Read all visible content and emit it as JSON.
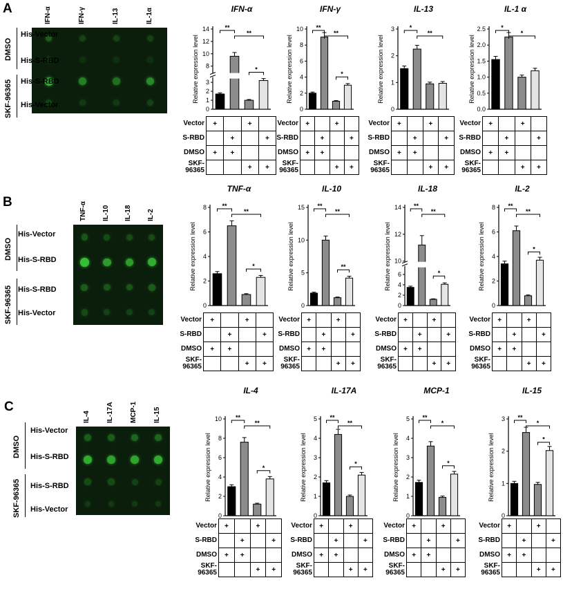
{
  "figure": {
    "panels": [
      {
        "letter": "A",
        "blot": {
          "columns": [
            "IFN-α",
            "IFN-γ",
            "IL-13",
            "IL-1α"
          ],
          "rows": [
            "His-Vector",
            "His-S-RBD",
            "His-S-RBD",
            "His-Vector"
          ],
          "groups": [
            "DMSO",
            "SKF-96365"
          ]
        }
      },
      {
        "letter": "B",
        "blot": {
          "columns": [
            "TNF-α",
            "IL-10",
            "IL-18",
            "IL-2"
          ],
          "rows": [
            "His-Vector",
            "His-S-RBD",
            "His-S-RBD",
            "His-Vector"
          ],
          "groups": [
            "DMSO",
            "SKF-96365"
          ]
        }
      },
      {
        "letter": "C",
        "blot": {
          "columns": [
            "IL-4",
            "IL-17A",
            "MCP-1",
            "IL-15"
          ],
          "rows": [
            "His-Vector",
            "His-S-RBD",
            "His-S-RBD",
            "His-Vector"
          ],
          "groups": [
            "DMSO",
            "SKF-96365"
          ]
        }
      }
    ],
    "condition_table": {
      "rows": [
        {
          "label": "Vector",
          "marks": [
            "+",
            "",
            "+",
            ""
          ]
        },
        {
          "label": "S-RBD",
          "marks": [
            "",
            "+",
            "",
            "+"
          ]
        },
        {
          "label": "DMSO",
          "marks": [
            "+",
            "+",
            "",
            ""
          ]
        },
        {
          "label": "SKF-96365",
          "marks": [
            "",
            "",
            "+",
            "+"
          ]
        }
      ]
    },
    "colors": {
      "bar1": "#000000",
      "bar2": "#8c8c8c",
      "bar3": "#8c8c8c",
      "bar4": "#e4e4e4",
      "blot_bg": "#0b1e0b",
      "blot_spot": "#3ad13a"
    }
  },
  "chart_data": [
    {
      "type": "bar",
      "title": "IFN-α",
      "ylabel": "Relative expression level",
      "values": [
        1.7,
        9.6,
        1.0,
        3.2
      ],
      "ylim": [
        0,
        14
      ],
      "break": [
        3.5,
        7
      ],
      "ticks": [
        0,
        1,
        2,
        3,
        8,
        10,
        12,
        14
      ],
      "sig": [
        {
          "from": 0,
          "to": 1,
          "label": "**"
        },
        {
          "from": 1,
          "to": 3,
          "label": "**"
        },
        {
          "from": 2,
          "to": 3,
          "label": "*"
        }
      ]
    },
    {
      "type": "bar",
      "title": "IFN-γ",
      "ylabel": "Relative expression level",
      "values": [
        2.0,
        9.0,
        1.0,
        3.0
      ],
      "ylim": [
        0,
        10
      ],
      "ticks": [
        0,
        2,
        4,
        6,
        8,
        10
      ],
      "sig": [
        {
          "from": 0,
          "to": 1,
          "label": "**"
        },
        {
          "from": 1,
          "to": 3,
          "label": "**"
        },
        {
          "from": 2,
          "to": 3,
          "label": "*"
        }
      ]
    },
    {
      "type": "bar",
      "title": "IL-13",
      "ylabel": "Relative expression level",
      "values": [
        1.52,
        2.25,
        0.95,
        0.97
      ],
      "ylim": [
        0,
        3
      ],
      "ticks": [
        0,
        1,
        2,
        3
      ],
      "sig": [
        {
          "from": 0,
          "to": 1,
          "label": "*"
        },
        {
          "from": 1,
          "to": 3,
          "label": "**"
        }
      ]
    },
    {
      "type": "bar",
      "title": "IL-1 α",
      "ylabel": "Relative expression level",
      "values": [
        1.55,
        2.25,
        1.0,
        1.2
      ],
      "ylim": [
        0,
        2.5
      ],
      "ticks": [
        0.0,
        0.5,
        1.0,
        1.5,
        2.0,
        2.5
      ],
      "sig": [
        {
          "from": 0,
          "to": 1,
          "label": "*"
        },
        {
          "from": 1,
          "to": 3,
          "label": "*"
        }
      ]
    },
    {
      "type": "bar",
      "title": "TNF-α",
      "ylabel": "Relative expression level",
      "values": [
        2.6,
        6.5,
        0.9,
        2.3
      ],
      "ylim": [
        0,
        8
      ],
      "ticks": [
        0,
        2,
        4,
        6,
        8
      ],
      "sig": [
        {
          "from": 0,
          "to": 1,
          "label": "**"
        },
        {
          "from": 1,
          "to": 3,
          "label": "**"
        },
        {
          "from": 2,
          "to": 3,
          "label": "*"
        }
      ]
    },
    {
      "type": "bar",
      "title": "IL-10",
      "ylabel": "Relative expression level",
      "values": [
        1.9,
        10.0,
        1.2,
        4.2
      ],
      "ylim": [
        0,
        15
      ],
      "ticks": [
        0,
        5,
        10,
        15
      ],
      "sig": [
        {
          "from": 0,
          "to": 1,
          "label": "**"
        },
        {
          "from": 1,
          "to": 3,
          "label": "**"
        },
        {
          "from": 2,
          "to": 3,
          "label": "**"
        }
      ]
    },
    {
      "type": "bar",
      "title": "IL-18",
      "ylabel": "Relative expression level",
      "values": [
        3.5,
        11.2,
        1.2,
        4.1
      ],
      "ylim": [
        0,
        14
      ],
      "break": [
        7.5,
        10
      ],
      "ticks": [
        0,
        2,
        4,
        6,
        10,
        12,
        14
      ],
      "sig": [
        {
          "from": 0,
          "to": 1,
          "label": "**"
        },
        {
          "from": 1,
          "to": 3,
          "label": "**"
        },
        {
          "from": 2,
          "to": 3,
          "label": "*"
        }
      ]
    },
    {
      "type": "bar",
      "title": "IL-2",
      "ylabel": "Relative expression level",
      "values": [
        3.4,
        6.1,
        0.8,
        3.7
      ],
      "ylim": [
        0,
        8
      ],
      "ticks": [
        0,
        2,
        4,
        6,
        8
      ],
      "sig": [
        {
          "from": 0,
          "to": 1,
          "label": "**"
        },
        {
          "from": 1,
          "to": 3,
          "label": "**"
        },
        {
          "from": 2,
          "to": 3,
          "label": "*"
        }
      ]
    },
    {
      "type": "bar",
      "title": "IL-4",
      "ylabel": "Relative expression level",
      "values": [
        3.0,
        7.6,
        1.2,
        3.8
      ],
      "ylim": [
        0,
        10
      ],
      "ticks": [
        0,
        2,
        4,
        6,
        8,
        10
      ],
      "sig": [
        {
          "from": 0,
          "to": 1,
          "label": "**"
        },
        {
          "from": 1,
          "to": 3,
          "label": "**"
        },
        {
          "from": 2,
          "to": 3,
          "label": "*"
        }
      ]
    },
    {
      "type": "bar",
      "title": "IL-17A",
      "ylabel": "Relative expression level",
      "values": [
        1.7,
        4.2,
        1.0,
        2.1
      ],
      "ylim": [
        0,
        5
      ],
      "ticks": [
        0,
        1,
        2,
        3,
        4,
        5
      ],
      "sig": [
        {
          "from": 0,
          "to": 1,
          "label": "**"
        },
        {
          "from": 1,
          "to": 3,
          "label": "**"
        },
        {
          "from": 2,
          "to": 3,
          "label": "*"
        }
      ]
    },
    {
      "type": "bar",
      "title": "MCP-1",
      "ylabel": "Relative expression level",
      "values": [
        1.72,
        3.6,
        0.95,
        2.15
      ],
      "ylim": [
        0,
        5
      ],
      "ticks": [
        0,
        1,
        2,
        3,
        4,
        5
      ],
      "sig": [
        {
          "from": 0,
          "to": 1,
          "label": "**"
        },
        {
          "from": 1,
          "to": 3,
          "label": "*"
        },
        {
          "from": 2,
          "to": 3,
          "label": "*"
        }
      ]
    },
    {
      "type": "bar",
      "title": "IL-15",
      "ylabel": "Relative expression level",
      "values": [
        1.0,
        2.58,
        0.97,
        2.02
      ],
      "ylim": [
        0,
        3
      ],
      "ticks": [
        0,
        1,
        2,
        3
      ],
      "sig": [
        {
          "from": 0,
          "to": 1,
          "label": "**"
        },
        {
          "from": 1,
          "to": 3,
          "label": "*"
        },
        {
          "from": 2,
          "to": 3,
          "label": "*"
        }
      ]
    }
  ]
}
